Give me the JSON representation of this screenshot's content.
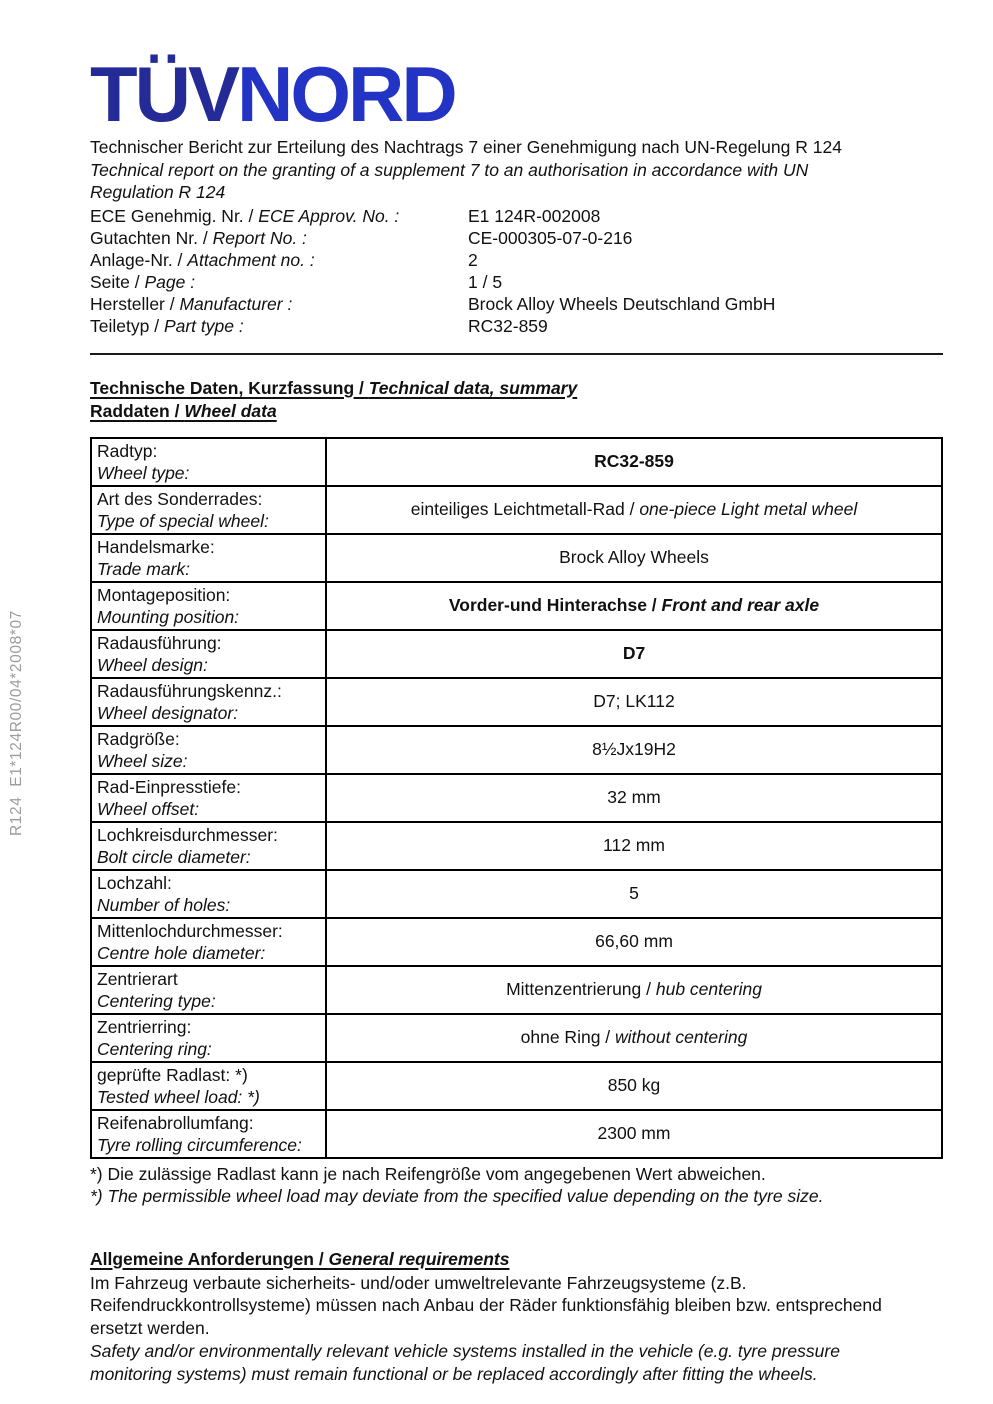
{
  "logo": {
    "part1": "TÜV",
    "part2": "NORD"
  },
  "colors": {
    "logo_tuv": "#242b96",
    "logo_nord": "#2333c3",
    "sidebar_text": "#9c9c9c",
    "text": "#111111",
    "table_border": "#000000"
  },
  "sidebar": {
    "vertical_text": "R124  E1*124R00/04*2008*07"
  },
  "separators": {
    "slash": " / "
  },
  "header": {
    "title_de": "Technischer Bericht zur Erteilung des Nachtrags 7 einer Genehmigung nach UN-Regelung R 124",
    "title_en": "Technical report on the granting of a supplement 7 to an authorisation in accordance with UN Regulation R 124",
    "meta": [
      {
        "label_de": "ECE Genehmig. Nr.",
        "label_en": "ECE Approv. No. :",
        "value": "E1 124R-002008"
      },
      {
        "label_de": "Gutachten Nr.",
        "label_en": "Report No. :",
        "value": "CE-000305-07-0-216"
      },
      {
        "label_de": "Anlage-Nr.",
        "label_en": "Attachment no. :",
        "value": "2"
      },
      {
        "label_de": "Seite",
        "label_en": "Page :",
        "value": "1 / 5"
      },
      {
        "label_de": "Hersteller",
        "label_en": "Manufacturer :",
        "value": "Brock Alloy Wheels Deutschland GmbH"
      },
      {
        "label_de": "Teiletyp",
        "label_en": "Part type :",
        "value": "RC32-859"
      }
    ]
  },
  "sections": {
    "technical_heading_de": "Technische Daten, Kurzfassung / ",
    "technical_heading_en": "Technical data, summary",
    "wheel_heading_de": "Raddaten / ",
    "wheel_heading_en": "Wheel data"
  },
  "wheel_table": {
    "rows": [
      {
        "label_de": "Radtyp:",
        "label_en": "Wheel type:",
        "value_de": "RC32-859",
        "value_en": "",
        "bold": true
      },
      {
        "label_de": "Art des Sonderrades:",
        "label_en": "Type of special wheel:",
        "value_de": "einteiliges Leichtmetall-Rad",
        "value_en": "one-piece Light metal wheel",
        "bold": false
      },
      {
        "label_de": "Handelsmarke:",
        "label_en": "Trade mark:",
        "value_de": "Brock Alloy Wheels",
        "value_en": "",
        "bold": false
      },
      {
        "label_de": "Montageposition:",
        "label_en": "Mounting position:",
        "value_de": "Vorder-und Hinterachse",
        "value_en": "Front and rear axle",
        "bold": true
      },
      {
        "label_de": "Radausführung:",
        "label_en": "Wheel design:",
        "value_de": "D7",
        "value_en": "",
        "bold": true
      },
      {
        "label_de": "Radausführungskennz.:",
        "label_en": "Wheel designator:",
        "value_de": "D7; LK112",
        "value_en": "",
        "bold": false
      },
      {
        "label_de": "Radgröße:",
        "label_en": "Wheel size:",
        "value_de": "8½Jx19H2",
        "value_en": "",
        "bold": false
      },
      {
        "label_de": "Rad-Einpresstiefe:",
        "label_en": "Wheel offset:",
        "value_de": "32 mm",
        "value_en": "",
        "bold": false
      },
      {
        "label_de": "Lochkreisdurchmesser:",
        "label_en": "Bolt circle diameter:",
        "value_de": "112 mm",
        "value_en": "",
        "bold": false
      },
      {
        "label_de": "Lochzahl:",
        "label_en": "Number of holes:",
        "value_de": "5",
        "value_en": "",
        "bold": false
      },
      {
        "label_de": "Mittenlochdurchmesser:",
        "label_en": "Centre hole diameter:",
        "value_de": "66,60 mm",
        "value_en": "",
        "bold": false
      },
      {
        "label_de": "Zentrierart",
        "label_en": "Centering type:",
        "value_de": "Mittenzentrierung",
        "value_en": "hub centering",
        "bold": false
      },
      {
        "label_de": "Zentrierring:",
        "label_en": "Centering ring:",
        "value_de": "ohne Ring",
        "value_en": "without centering",
        "bold": false
      },
      {
        "label_de": "geprüfte Radlast: *)",
        "label_en": "Tested wheel load: *)",
        "value_de": "850 kg",
        "value_en": "",
        "bold": false
      },
      {
        "label_de": "Reifenabrollumfang:",
        "label_en": "Tyre rolling circumference:",
        "value_de": "2300 mm",
        "value_en": "",
        "bold": false
      }
    ]
  },
  "footnotes": {
    "de": "*) Die zulässige Radlast kann je nach Reifengröße vom angegebenen Wert abweichen.",
    "en": "*) The permissible wheel load may deviate from the specified value depending on the tyre size."
  },
  "general_requirements": {
    "heading_de": "Allgemeine Anforderungen / ",
    "heading_en": "General requirements",
    "body_de": "Im Fahrzeug verbaute sicherheits- und/oder umweltrelevante Fahrzeugsysteme (z.B. Reifendruckkontrollsysteme) müssen nach Anbau der Räder funktionsfähig bleiben bzw. entsprechend ersetzt werden.",
    "body_en": "Safety and/or environmentally relevant vehicle systems installed in the vehicle (e.g. tyre pressure monitoring systems) must remain functional or be replaced accordingly after fitting the wheels."
  }
}
